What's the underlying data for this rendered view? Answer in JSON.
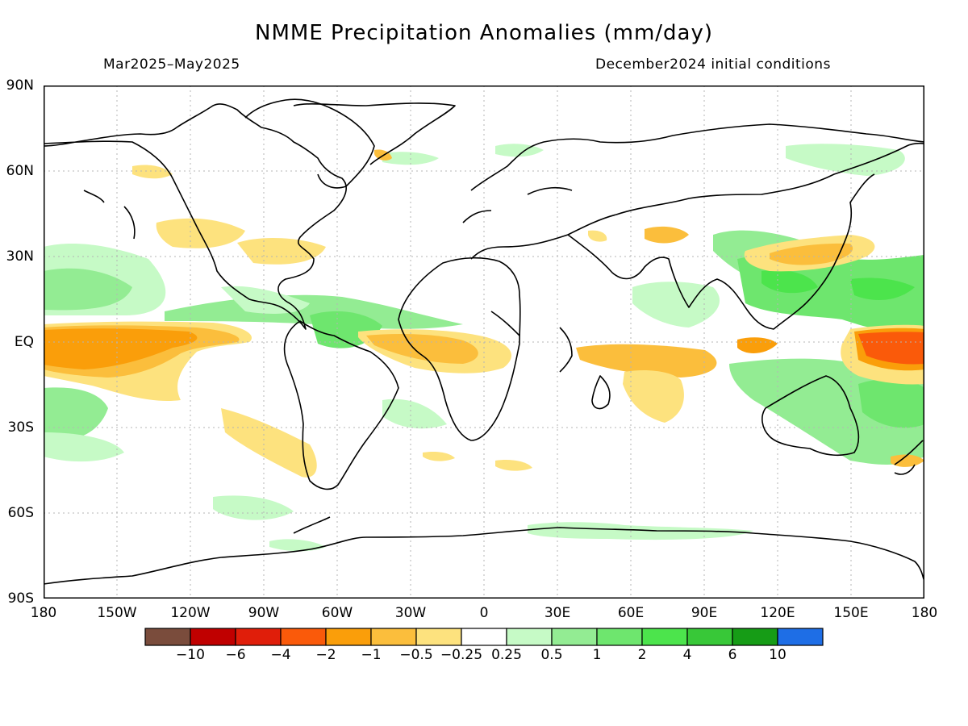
{
  "title": "NMME Precipitation Anomalies (mm/day)",
  "period": "Mar2025–May2025",
  "init": "December2024 initial conditions",
  "lat_labels": [
    "90N",
    "60N",
    "30N",
    "EQ",
    "30S",
    "60S",
    "90S"
  ],
  "lon_labels": [
    "180",
    "150W",
    "120W",
    "90W",
    "60W",
    "30W",
    "0",
    "30E",
    "60E",
    "90E",
    "120E",
    "150E",
    "180"
  ],
  "legend": {
    "labels": [
      "−10",
      "−6",
      "−4",
      "−2",
      "−1",
      "−0.5",
      "−0.25",
      "0.25",
      "0.5",
      "1",
      "2",
      "4",
      "6",
      "10"
    ],
    "colors": [
      "#7a4c3c",
      "#c00000",
      "#e01e0a",
      "#fa5a0a",
      "#fa9e0a",
      "#fbbe3c",
      "#fde27e",
      "#ffffff",
      "#c6fac6",
      "#93ec93",
      "#6ee66e",
      "#4ce44c",
      "#38c838",
      "#169c16",
      "#1e6ee6"
    ]
  },
  "colors": {
    "dry_1": "#fde27e",
    "dry_2": "#fbbe3c",
    "dry_3": "#fa9e0a",
    "dry_4": "#fa5a0a",
    "wet_1": "#c6fac6",
    "wet_2": "#93ec93",
    "wet_3": "#6ee66e",
    "wet_4": "#4ce44c"
  }
}
